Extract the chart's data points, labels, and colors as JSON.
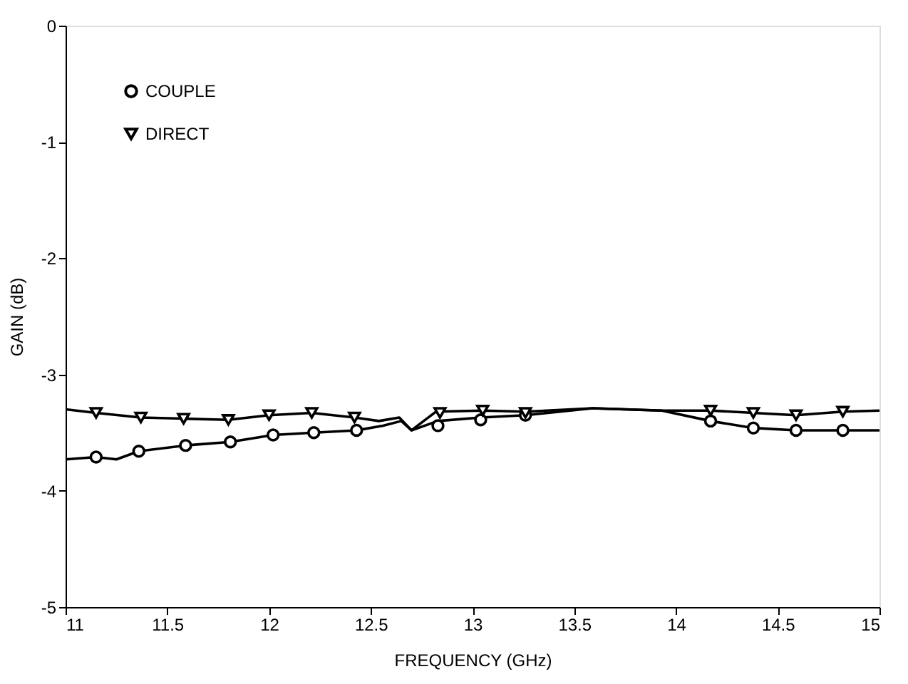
{
  "chart_data": {
    "type": "line",
    "xlabel": "FREQUENCY (GHz)",
    "ylabel": "GAIN (dB)",
    "xlim": [
      11,
      15
    ],
    "xticks": [
      11,
      11.5,
      12,
      12.5,
      13,
      13.5,
      14,
      14.5,
      15
    ],
    "ylim": [
      -5,
      0
    ],
    "yticks": [
      -5,
      -4,
      -3,
      -2,
      -1,
      0
    ],
    "grid": false,
    "legend": "top left",
    "series": [
      {
        "type": "line",
        "color": "#000000",
        "marker": "none",
        "x": [
          11,
          11.15,
          11.25,
          11.36,
          11.59,
          11.81,
          12.02,
          12.22,
          12.43,
          12.56,
          12.65,
          12.7,
          12.83,
          13.04,
          13.26,
          13.59,
          13.93,
          14.17,
          14.38,
          14.59,
          14.82,
          15
        ],
        "values": [
          -3.73,
          -3.71,
          -3.73,
          -3.66,
          -3.61,
          -3.58,
          -3.52,
          -3.5,
          -3.48,
          -3.44,
          -3.4,
          -3.48,
          -3.4,
          -3.37,
          -3.35,
          -3.29,
          -3.31,
          -3.4,
          -3.46,
          -3.48,
          -3.48,
          -3.48
        ]
      },
      {
        "type": "line",
        "color": "#000000",
        "marker": "none",
        "x": [
          11,
          11.15,
          11.37,
          11.58,
          11.8,
          12.0,
          12.21,
          12.42,
          12.54,
          12.64,
          12.7,
          12.82,
          13.05,
          13.26,
          13.59,
          13.93,
          14.17,
          14.38,
          14.59,
          14.82,
          15
        ],
        "values": [
          -3.3,
          -3.33,
          -3.37,
          -3.38,
          -3.39,
          -3.35,
          -3.33,
          -3.37,
          -3.4,
          -3.37,
          -3.48,
          -3.32,
          -3.31,
          -3.32,
          -3.29,
          -3.31,
          -3.31,
          -3.33,
          -3.35,
          -3.32,
          -3.31
        ]
      },
      {
        "type": "scatter",
        "name": "COUPLE",
        "color": "#000000",
        "marker": "circle",
        "x": [
          11.15,
          11.36,
          11.59,
          11.81,
          12.02,
          12.22,
          12.43,
          12.83,
          13.04,
          13.26,
          14.17,
          14.38,
          14.59,
          14.82
        ],
        "values": [
          -3.71,
          -3.66,
          -3.61,
          -3.58,
          -3.52,
          -3.5,
          -3.48,
          -3.44,
          -3.39,
          -3.35,
          -3.4,
          -3.46,
          -3.48,
          -3.48
        ]
      },
      {
        "type": "scatter",
        "name": "DIRECT",
        "color": "#000000",
        "marker": "triangle",
        "x": [
          11.15,
          11.37,
          11.58,
          11.8,
          12.0,
          12.21,
          12.42,
          12.84,
          13.05,
          13.26,
          14.17,
          14.38,
          14.59,
          14.82
        ],
        "values": [
          -3.33,
          -3.37,
          -3.38,
          -3.39,
          -3.35,
          -3.33,
          -3.37,
          -3.33,
          -3.31,
          -3.33,
          -3.31,
          -3.33,
          -3.35,
          -3.32
        ]
      }
    ]
  }
}
